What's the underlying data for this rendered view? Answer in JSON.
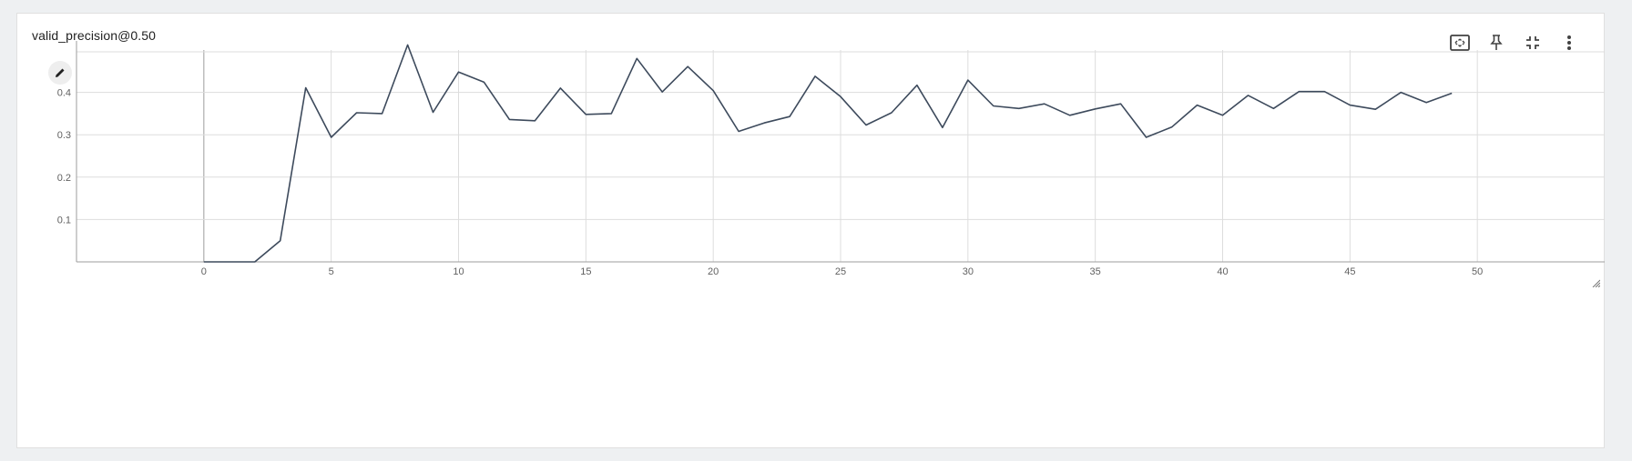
{
  "card": {
    "title": "valid_precision@0.50"
  },
  "toolbar": {
    "icons": [
      "fit-to-data-icon",
      "pin-icon",
      "collapse-icon",
      "more-vert-icon"
    ]
  },
  "colors": {
    "line": "#3d4a5c",
    "grid": "#dddddd",
    "axis": "#9e9e9e",
    "background": "#ffffff"
  },
  "chart_data": {
    "type": "line",
    "title": "valid_precision@0.50",
    "xlabel": "",
    "ylabel": "",
    "xlim": [
      -5,
      55
    ],
    "ylim": [
      0,
      0.5
    ],
    "x_ticks": [
      0,
      5,
      10,
      15,
      20,
      25,
      30,
      35,
      40,
      45,
      50
    ],
    "y_ticks": [
      0.1,
      0.2,
      0.3,
      0.4
    ],
    "y_tick_labels": [
      "0.1",
      "0.2",
      "0.3",
      "0.4"
    ],
    "grid": true,
    "legend": "none",
    "series": [
      {
        "x": [
          0,
          1,
          2,
          3,
          4,
          5,
          6,
          7,
          8,
          9,
          10,
          11,
          12,
          13,
          14,
          15,
          16,
          17,
          18,
          19,
          20,
          21,
          22,
          23,
          24,
          25,
          26,
          27,
          28,
          29,
          30,
          31,
          32,
          33,
          34,
          35,
          36,
          37,
          38,
          39,
          40,
          41,
          42,
          43,
          44,
          45,
          46,
          47,
          48,
          49
        ],
        "values": [
          0.0,
          0.0,
          0.0,
          0.05,
          0.411,
          0.294,
          0.352,
          0.35,
          0.512,
          0.353,
          0.448,
          0.424,
          0.336,
          0.333,
          0.41,
          0.348,
          0.35,
          0.48,
          0.401,
          0.461,
          0.404,
          0.308,
          0.328,
          0.343,
          0.438,
          0.39,
          0.323,
          0.352,
          0.417,
          0.317,
          0.429,
          0.368,
          0.362,
          0.373,
          0.346,
          0.361,
          0.373,
          0.294,
          0.318,
          0.37,
          0.346,
          0.393,
          0.362,
          0.402,
          0.402,
          0.37,
          0.36,
          0.4,
          0.376,
          0.398
        ]
      }
    ]
  }
}
